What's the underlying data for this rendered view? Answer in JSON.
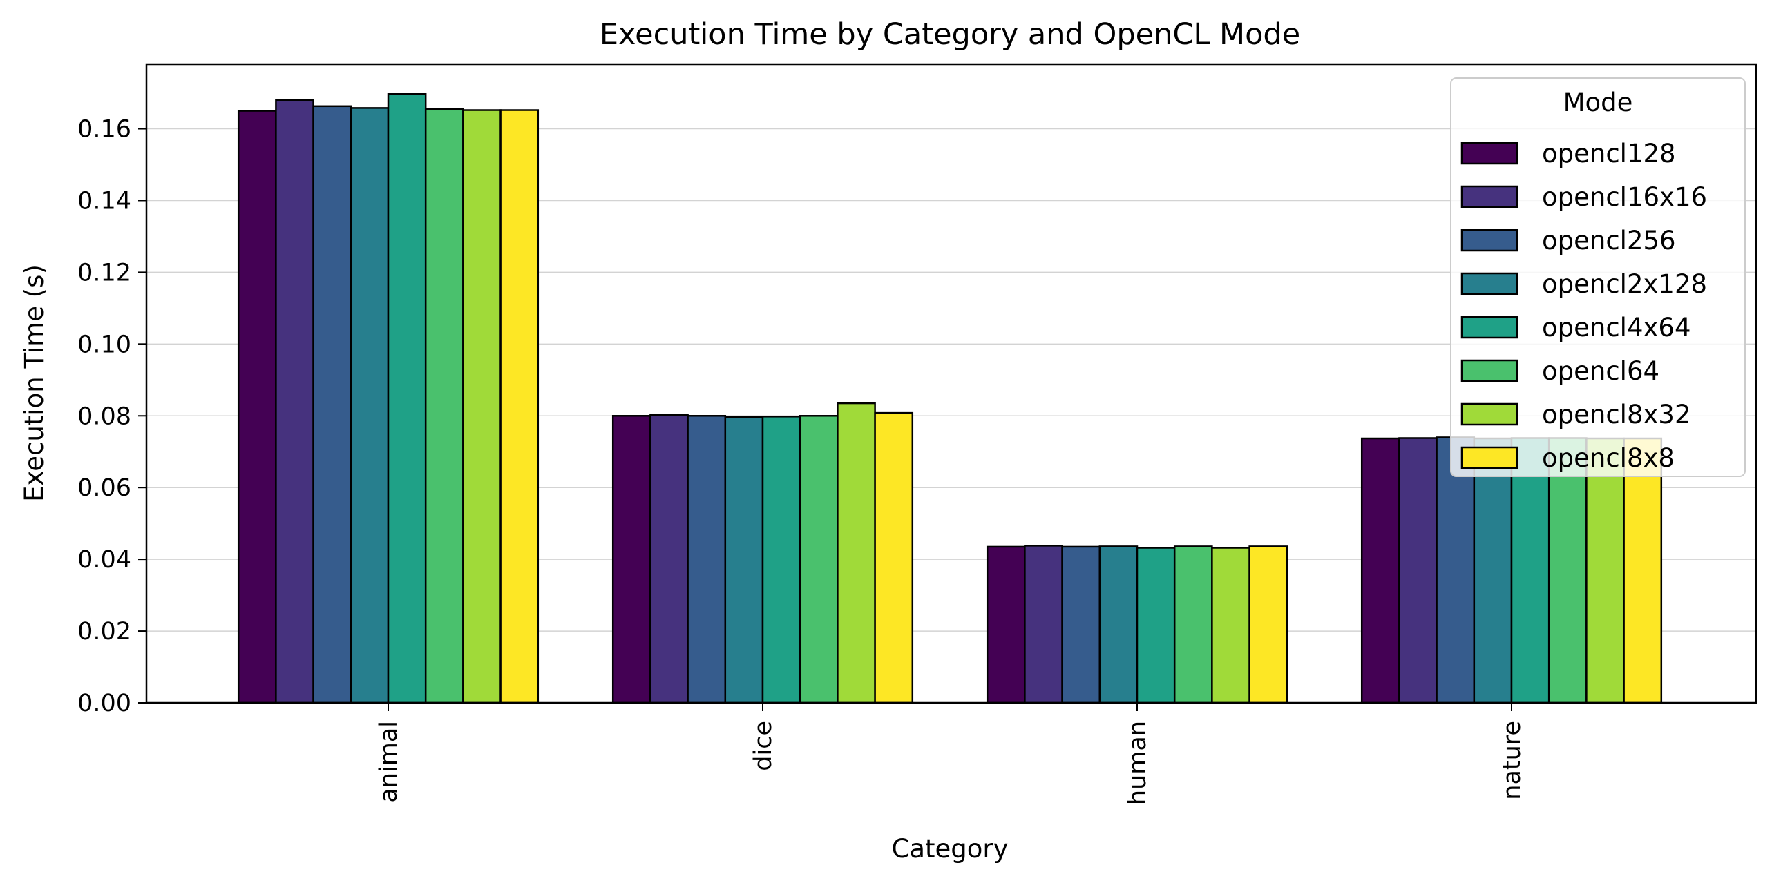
{
  "chart_data": {
    "type": "bar",
    "title": "Execution Time by Category and OpenCL Mode",
    "xlabel": "Category",
    "ylabel": "Execution Time (s)",
    "categories": [
      "animal",
      "dice",
      "human",
      "nature"
    ],
    "ylim": [
      0,
      0.178
    ],
    "yticks": [
      "0.00",
      "0.02",
      "0.04",
      "0.06",
      "0.08",
      "0.10",
      "0.12",
      "0.14",
      "0.16"
    ],
    "grid": "horizontal",
    "legend": {
      "title": "Mode",
      "placement": "upper-right"
    },
    "series": [
      {
        "name": "opencl128",
        "color": "#440154",
        "values": [
          0.165,
          0.08,
          0.0435,
          0.0737
        ]
      },
      {
        "name": "opencl16x16",
        "color": "#46327e",
        "values": [
          0.168,
          0.0802,
          0.0438,
          0.0738
        ]
      },
      {
        "name": "opencl256",
        "color": "#365c8d",
        "values": [
          0.1663,
          0.08,
          0.0435,
          0.074
        ]
      },
      {
        "name": "opencl2x128",
        "color": "#277f8e",
        "values": [
          0.1658,
          0.0797,
          0.0436,
          0.0737
        ]
      },
      {
        "name": "opencl4x64",
        "color": "#1fa187",
        "values": [
          0.1697,
          0.0798,
          0.0432,
          0.0738
        ]
      },
      {
        "name": "opencl64",
        "color": "#4ac16d",
        "values": [
          0.1655,
          0.08,
          0.0436,
          0.0738
        ]
      },
      {
        "name": "opencl8x32",
        "color": "#a0da39",
        "values": [
          0.1652,
          0.0835,
          0.0432,
          0.0737
        ]
      },
      {
        "name": "opencl8x8",
        "color": "#fde725",
        "values": [
          0.1652,
          0.0808,
          0.0436,
          0.0737
        ]
      }
    ]
  }
}
